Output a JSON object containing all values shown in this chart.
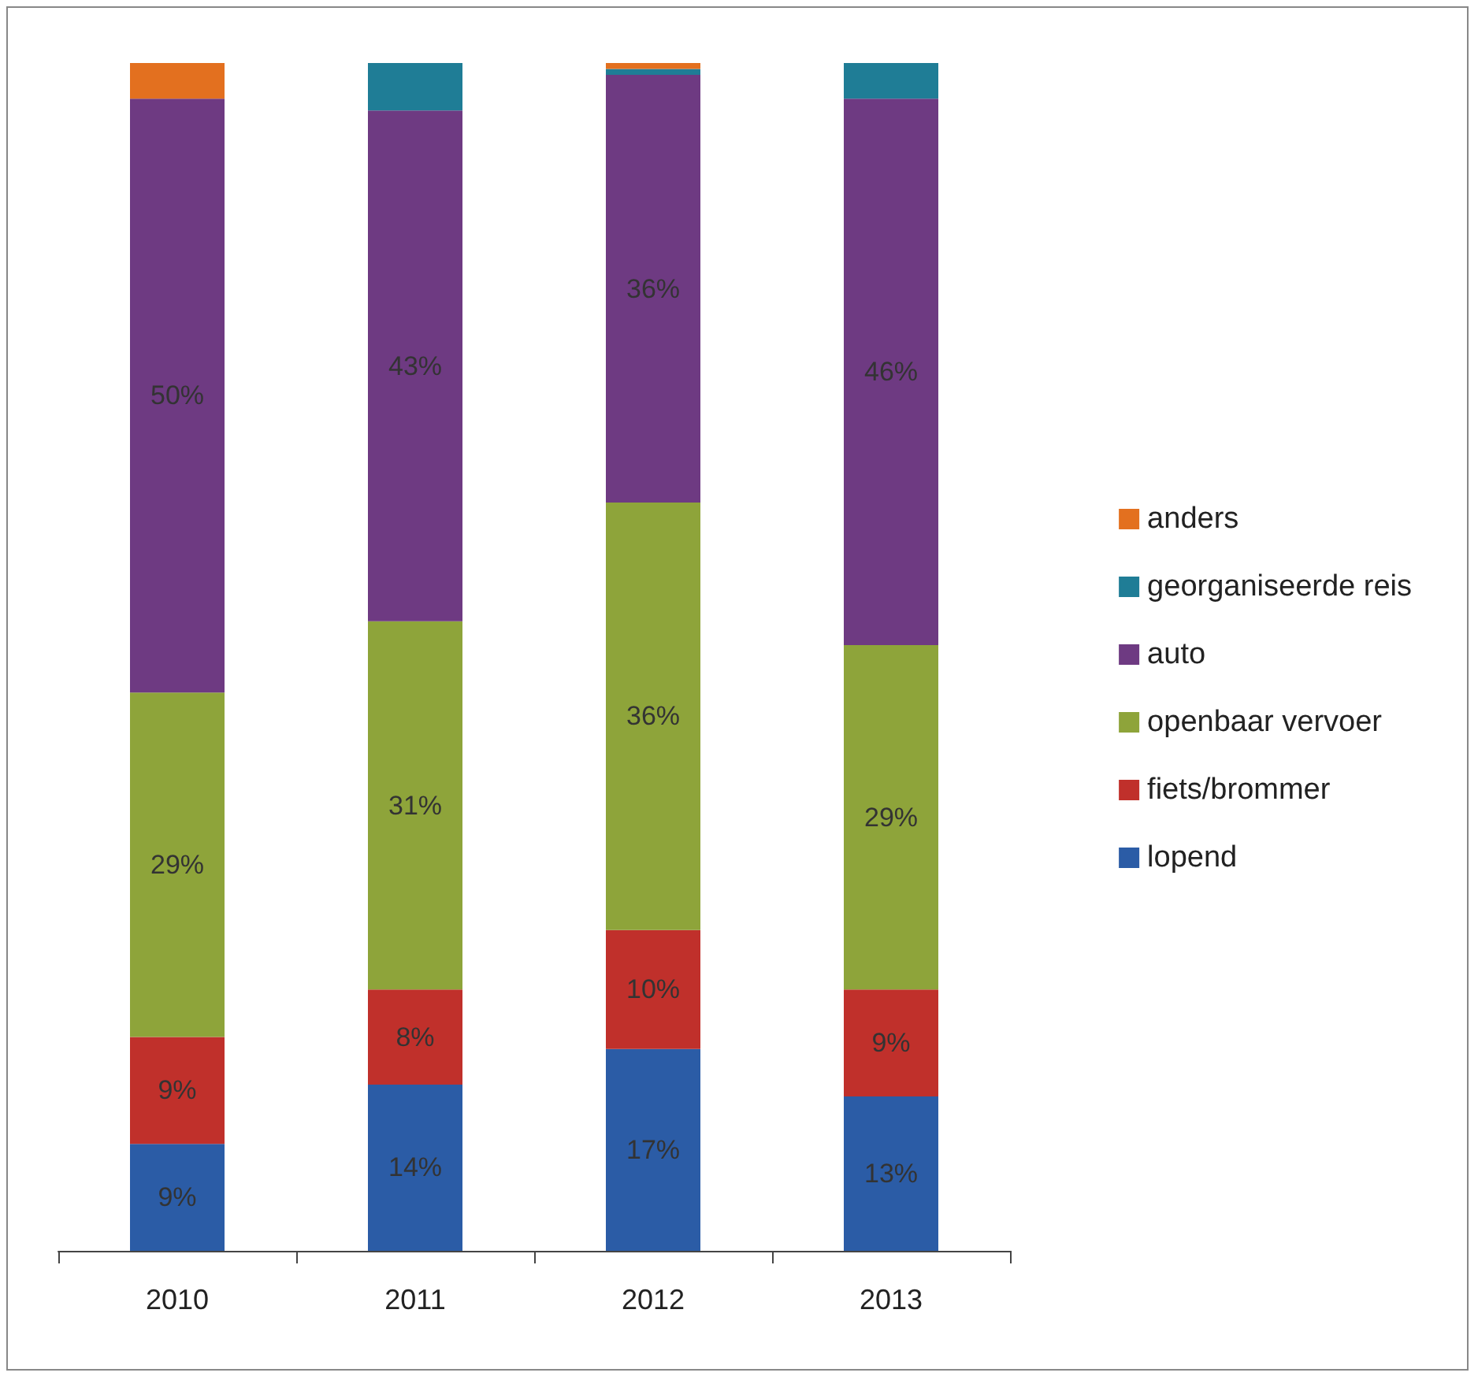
{
  "chart_data": {
    "type": "bar",
    "stacked": true,
    "categories": [
      "2010",
      "2011",
      "2012",
      "2013"
    ],
    "legend": "right",
    "series": [
      {
        "name": "lopend",
        "color": "#2b5ca6",
        "values": [
          9,
          14,
          17,
          13
        ],
        "value_labels": [
          "9%",
          "14%",
          "17%",
          "13%"
        ]
      },
      {
        "name": "fiets/brommer",
        "color": "#c0302b",
        "values": [
          9,
          8,
          10,
          9
        ],
        "value_labels": [
          "9%",
          "8%",
          "10%",
          "9%"
        ]
      },
      {
        "name": "openbaar vervoer",
        "color": "#8ea43a",
        "values": [
          29,
          31,
          36,
          29
        ],
        "value_labels": [
          "29%",
          "31%",
          "36%",
          "29%"
        ]
      },
      {
        "name": "auto",
        "color": "#6e3a82",
        "values": [
          50,
          43,
          36,
          46
        ],
        "value_labels": [
          "50%",
          "43%",
          "36%",
          "46%"
        ]
      },
      {
        "name": "georganiseerde reis",
        "color": "#1f7d96",
        "values": [
          0,
          4,
          0.5,
          3
        ],
        "value_labels": [
          null,
          null,
          null,
          null
        ]
      },
      {
        "name": "anders",
        "color": "#e3701f",
        "values": [
          3,
          0,
          0.5,
          0
        ],
        "value_labels": [
          null,
          null,
          null,
          null
        ]
      }
    ]
  }
}
